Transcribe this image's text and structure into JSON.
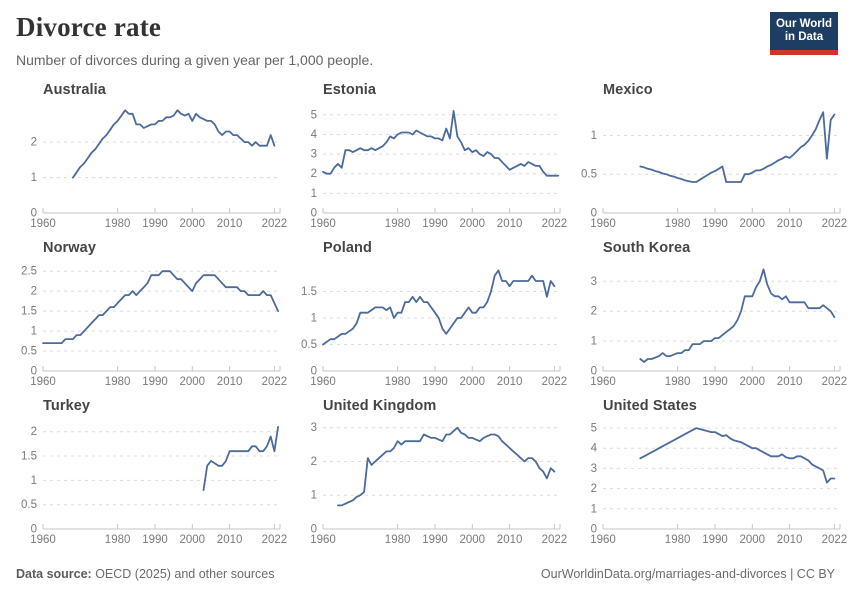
{
  "header": {
    "title": "Divorce rate",
    "subtitle": "Number of divorces during a given year per 1,000 people.",
    "logo": {
      "line1": "Our World",
      "line2": "in Data",
      "bg": "#1d3d63",
      "accent": "#d0342c"
    }
  },
  "footer": {
    "source_label": "Data source:",
    "source_text": " OECD (2025) and other sources",
    "right_text": "OurWorldinData.org/marriages-and-divorces | CC BY"
  },
  "colors": {
    "line": "#4c6a9c",
    "grid": "#dcdcdc",
    "axis": "#c6c6c6",
    "tick_label": "#7a7a7a",
    "chart_title": "#454545",
    "title": "#333333",
    "subtitle": "#666666"
  },
  "chart_data": [
    {
      "type": "line",
      "title": "Australia",
      "x_ticks": [
        1960,
        1980,
        1990,
        2000,
        2010,
        2022
      ],
      "x_domain": [
        1960,
        2023.5
      ],
      "y_ticks": [
        0,
        1,
        2
      ],
      "y_max": 3.02,
      "start_year": 1968,
      "values": [
        1.0,
        1.15,
        1.3,
        1.4,
        1.55,
        1.7,
        1.8,
        1.95,
        2.1,
        2.2,
        2.35,
        2.5,
        2.6,
        2.75,
        2.9,
        2.8,
        2.8,
        2.5,
        2.5,
        2.4,
        2.45,
        2.5,
        2.5,
        2.6,
        2.6,
        2.7,
        2.7,
        2.75,
        2.9,
        2.8,
        2.75,
        2.8,
        2.6,
        2.8,
        2.7,
        2.65,
        2.6,
        2.6,
        2.5,
        2.3,
        2.2,
        2.3,
        2.3,
        2.2,
        2.2,
        2.1,
        2.0,
        2.0,
        1.9,
        2.0,
        1.9,
        1.9,
        1.9,
        2.2,
        1.9
      ]
    },
    {
      "type": "line",
      "title": "Estonia",
      "x_ticks": [
        1960,
        1980,
        1990,
        2000,
        2010,
        2022
      ],
      "x_domain": [
        1960,
        2023.5
      ],
      "y_ticks": [
        0,
        1,
        2,
        3,
        4,
        5
      ],
      "y_max": 5.45,
      "start_year": 1960,
      "values": [
        2.1,
        2.0,
        2.0,
        2.3,
        2.5,
        2.3,
        3.2,
        3.2,
        3.1,
        3.2,
        3.3,
        3.2,
        3.2,
        3.3,
        3.2,
        3.3,
        3.4,
        3.6,
        3.9,
        3.8,
        4.0,
        4.1,
        4.1,
        4.1,
        4.0,
        4.2,
        4.1,
        4.0,
        3.9,
        3.9,
        3.8,
        3.8,
        3.7,
        4.3,
        3.8,
        5.2,
        3.9,
        3.6,
        3.2,
        3.3,
        3.1,
        3.2,
        3.0,
        2.9,
        3.1,
        3.0,
        2.8,
        2.8,
        2.6,
        2.4,
        2.2,
        2.3,
        2.4,
        2.5,
        2.4,
        2.6,
        2.5,
        2.4,
        2.4,
        2.1,
        1.9,
        1.9,
        1.9,
        1.9
      ]
    },
    {
      "type": "line",
      "title": "Mexico",
      "x_ticks": [
        1960,
        1980,
        1990,
        2000,
        2010,
        2022
      ],
      "x_domain": [
        1960,
        2023.5
      ],
      "y_ticks": [
        0,
        0.5,
        1
      ],
      "y_max": 1.38,
      "start_year": 1970,
      "values": [
        0.6,
        0.59,
        0.57,
        0.56,
        0.54,
        0.53,
        0.51,
        0.5,
        0.48,
        0.47,
        0.45,
        0.44,
        0.42,
        0.41,
        0.4,
        0.4,
        0.43,
        0.46,
        0.49,
        0.52,
        0.54,
        0.57,
        0.6,
        0.4,
        0.4,
        0.4,
        0.4,
        0.4,
        0.5,
        0.5,
        0.52,
        0.55,
        0.55,
        0.57,
        0.6,
        0.62,
        0.65,
        0.68,
        0.7,
        0.73,
        0.71,
        0.75,
        0.8,
        0.85,
        0.88,
        0.93,
        1.0,
        1.08,
        1.2,
        1.3,
        0.7,
        1.2,
        1.27
      ]
    },
    {
      "type": "line",
      "title": "Norway",
      "x_ticks": [
        1960,
        1980,
        1990,
        2000,
        2010,
        2022
      ],
      "x_domain": [
        1960,
        2023.5
      ],
      "y_ticks": [
        0,
        0.5,
        1,
        1.5,
        2,
        2.5
      ],
      "y_max": 2.68,
      "start_year": 1960,
      "values": [
        0.7,
        0.7,
        0.7,
        0.7,
        0.7,
        0.7,
        0.8,
        0.8,
        0.8,
        0.9,
        0.9,
        1.0,
        1.1,
        1.2,
        1.3,
        1.4,
        1.4,
        1.5,
        1.6,
        1.6,
        1.7,
        1.8,
        1.9,
        1.9,
        2.0,
        1.9,
        2.0,
        2.1,
        2.2,
        2.4,
        2.4,
        2.4,
        2.5,
        2.5,
        2.5,
        2.4,
        2.3,
        2.3,
        2.2,
        2.1,
        2.0,
        2.2,
        2.3,
        2.4,
        2.4,
        2.4,
        2.4,
        2.3,
        2.2,
        2.1,
        2.1,
        2.1,
        2.1,
        2.0,
        2.0,
        1.9,
        1.9,
        1.9,
        1.9,
        2.0,
        1.9,
        1.9,
        1.7,
        1.5
      ]
    },
    {
      "type": "line",
      "title": "Poland",
      "x_ticks": [
        1960,
        1980,
        1990,
        2000,
        2010,
        2022
      ],
      "x_domain": [
        1960,
        2023.5
      ],
      "y_ticks": [
        0,
        0.5,
        1,
        1.5
      ],
      "y_max": 2.02,
      "start_year": 1960,
      "values": [
        0.5,
        0.55,
        0.6,
        0.6,
        0.65,
        0.7,
        0.7,
        0.75,
        0.8,
        0.9,
        1.1,
        1.1,
        1.1,
        1.15,
        1.2,
        1.2,
        1.2,
        1.15,
        1.2,
        1.0,
        1.1,
        1.1,
        1.3,
        1.3,
        1.4,
        1.3,
        1.4,
        1.3,
        1.3,
        1.2,
        1.1,
        1.0,
        0.8,
        0.7,
        0.8,
        0.9,
        1.0,
        1.0,
        1.1,
        1.2,
        1.1,
        1.1,
        1.2,
        1.2,
        1.3,
        1.5,
        1.8,
        1.9,
        1.7,
        1.7,
        1.6,
        1.7,
        1.7,
        1.7,
        1.7,
        1.7,
        1.8,
        1.7,
        1.7,
        1.7,
        1.4,
        1.7,
        1.6
      ]
    },
    {
      "type": "line",
      "title": "South Korea",
      "x_ticks": [
        1960,
        1980,
        1990,
        2000,
        2010,
        2022
      ],
      "x_domain": [
        1960,
        2023.5
      ],
      "y_ticks": [
        0,
        1,
        2,
        3
      ],
      "y_max": 3.58,
      "start_year": 1970,
      "values": [
        0.4,
        0.3,
        0.4,
        0.4,
        0.45,
        0.5,
        0.6,
        0.5,
        0.5,
        0.55,
        0.6,
        0.6,
        0.7,
        0.7,
        0.9,
        0.9,
        0.9,
        1.0,
        1.0,
        1.0,
        1.1,
        1.1,
        1.2,
        1.3,
        1.4,
        1.5,
        1.7,
        2.0,
        2.5,
        2.5,
        2.5,
        2.8,
        3.0,
        3.4,
        2.9,
        2.6,
        2.5,
        2.5,
        2.4,
        2.5,
        2.3,
        2.3,
        2.3,
        2.3,
        2.3,
        2.1,
        2.1,
        2.1,
        2.1,
        2.2,
        2.1,
        2.0,
        1.8
      ]
    },
    {
      "type": "line",
      "title": "Turkey",
      "x_ticks": [
        1960,
        1980,
        1990,
        2000,
        2010,
        2022
      ],
      "x_domain": [
        1960,
        2023.5
      ],
      "y_ticks": [
        0,
        0.5,
        1,
        1.5,
        2
      ],
      "y_max": 2.2,
      "start_year": 2003,
      "values": [
        0.8,
        1.3,
        1.4,
        1.35,
        1.3,
        1.3,
        1.4,
        1.6,
        1.6,
        1.6,
        1.6,
        1.6,
        1.6,
        1.7,
        1.7,
        1.6,
        1.6,
        1.7,
        1.9,
        1.6,
        2.1
      ]
    },
    {
      "type": "line",
      "title": "United Kingdom",
      "x_ticks": [
        1960,
        1980,
        1990,
        2000,
        2010,
        2022
      ],
      "x_domain": [
        1960,
        2023.5
      ],
      "y_ticks": [
        0,
        1,
        2,
        3
      ],
      "y_max": 3.17,
      "start_year": 1964,
      "values": [
        0.7,
        0.7,
        0.75,
        0.8,
        0.85,
        0.95,
        1.0,
        1.1,
        2.1,
        1.9,
        2.0,
        2.1,
        2.2,
        2.3,
        2.3,
        2.4,
        2.6,
        2.5,
        2.6,
        2.6,
        2.6,
        2.6,
        2.6,
        2.8,
        2.75,
        2.7,
        2.7,
        2.65,
        2.6,
        2.8,
        2.8,
        2.9,
        3.0,
        2.85,
        2.8,
        2.7,
        2.7,
        2.65,
        2.6,
        2.7,
        2.75,
        2.8,
        2.8,
        2.75,
        2.6,
        2.5,
        2.4,
        2.3,
        2.2,
        2.1,
        2.0,
        2.1,
        2.1,
        2.0,
        1.8,
        1.7,
        1.5,
        1.8,
        1.7
      ]
    },
    {
      "type": "line",
      "title": "United States",
      "x_ticks": [
        1960,
        1980,
        1990,
        2000,
        2010,
        2022
      ],
      "x_domain": [
        1960,
        2023.5
      ],
      "y_ticks": [
        0,
        1,
        2,
        3,
        4,
        5
      ],
      "y_max": 5.3,
      "start_year": 1970,
      "values": [
        3.5,
        3.6,
        3.7,
        3.8,
        3.9,
        4.0,
        4.1,
        4.2,
        4.3,
        4.4,
        4.5,
        4.6,
        4.7,
        4.8,
        4.9,
        5.0,
        4.95,
        4.9,
        4.85,
        4.8,
        4.8,
        4.7,
        4.6,
        4.65,
        4.5,
        4.4,
        4.35,
        4.3,
        4.2,
        4.1,
        4.0,
        4.0,
        3.9,
        3.8,
        3.7,
        3.6,
        3.6,
        3.6,
        3.7,
        3.55,
        3.5,
        3.5,
        3.6,
        3.6,
        3.5,
        3.4,
        3.2,
        3.1,
        3.0,
        2.9,
        2.3,
        2.5,
        2.5
      ]
    }
  ]
}
